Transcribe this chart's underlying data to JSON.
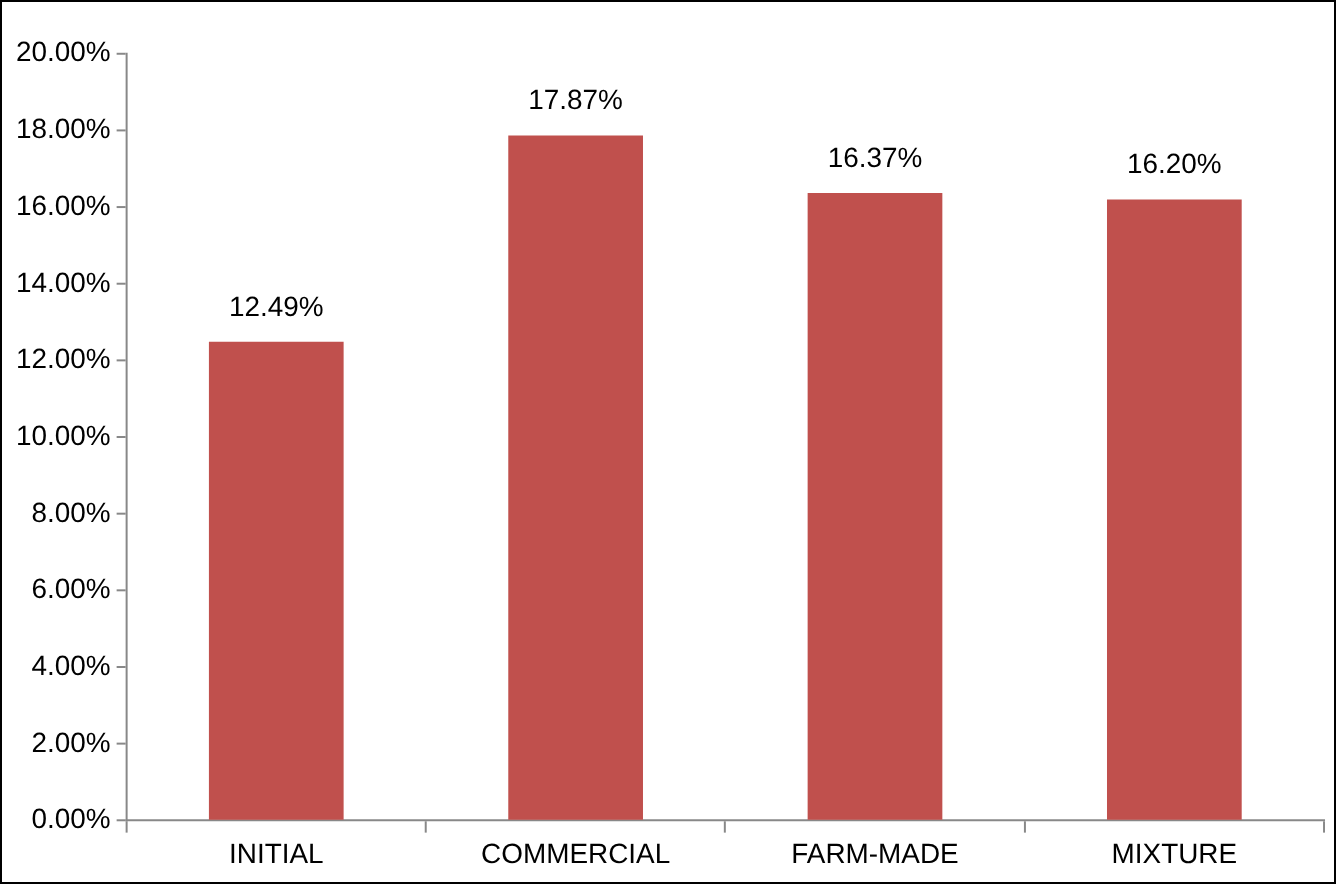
{
  "chart_data": {
    "type": "bar",
    "categories": [
      "INITIAL",
      "COMMERCIAL",
      "FARM-MADE",
      "MIXTURE"
    ],
    "values": [
      12.49,
      17.87,
      16.37,
      16.2
    ],
    "color": "#c0504d",
    "value_labels": [
      "12.49%",
      "17.87%",
      "16.37%",
      "16.20%"
    ],
    "ylim": [
      0,
      20
    ],
    "yticks": [
      {
        "value": 0,
        "label": "0.00%"
      },
      {
        "value": 2,
        "label": "2.00%"
      },
      {
        "value": 4,
        "label": "4.00%"
      },
      {
        "value": 6,
        "label": "6.00%"
      },
      {
        "value": 8,
        "label": "8.00%"
      },
      {
        "value": 10,
        "label": "10.00%"
      },
      {
        "value": 12,
        "label": "12.00%"
      },
      {
        "value": 14,
        "label": "14.00%"
      },
      {
        "value": 16,
        "label": "16.00%"
      },
      {
        "value": 18,
        "label": "18.00%"
      },
      {
        "value": 20,
        "label": "20.00%"
      }
    ],
    "grid": false,
    "legend": false
  }
}
